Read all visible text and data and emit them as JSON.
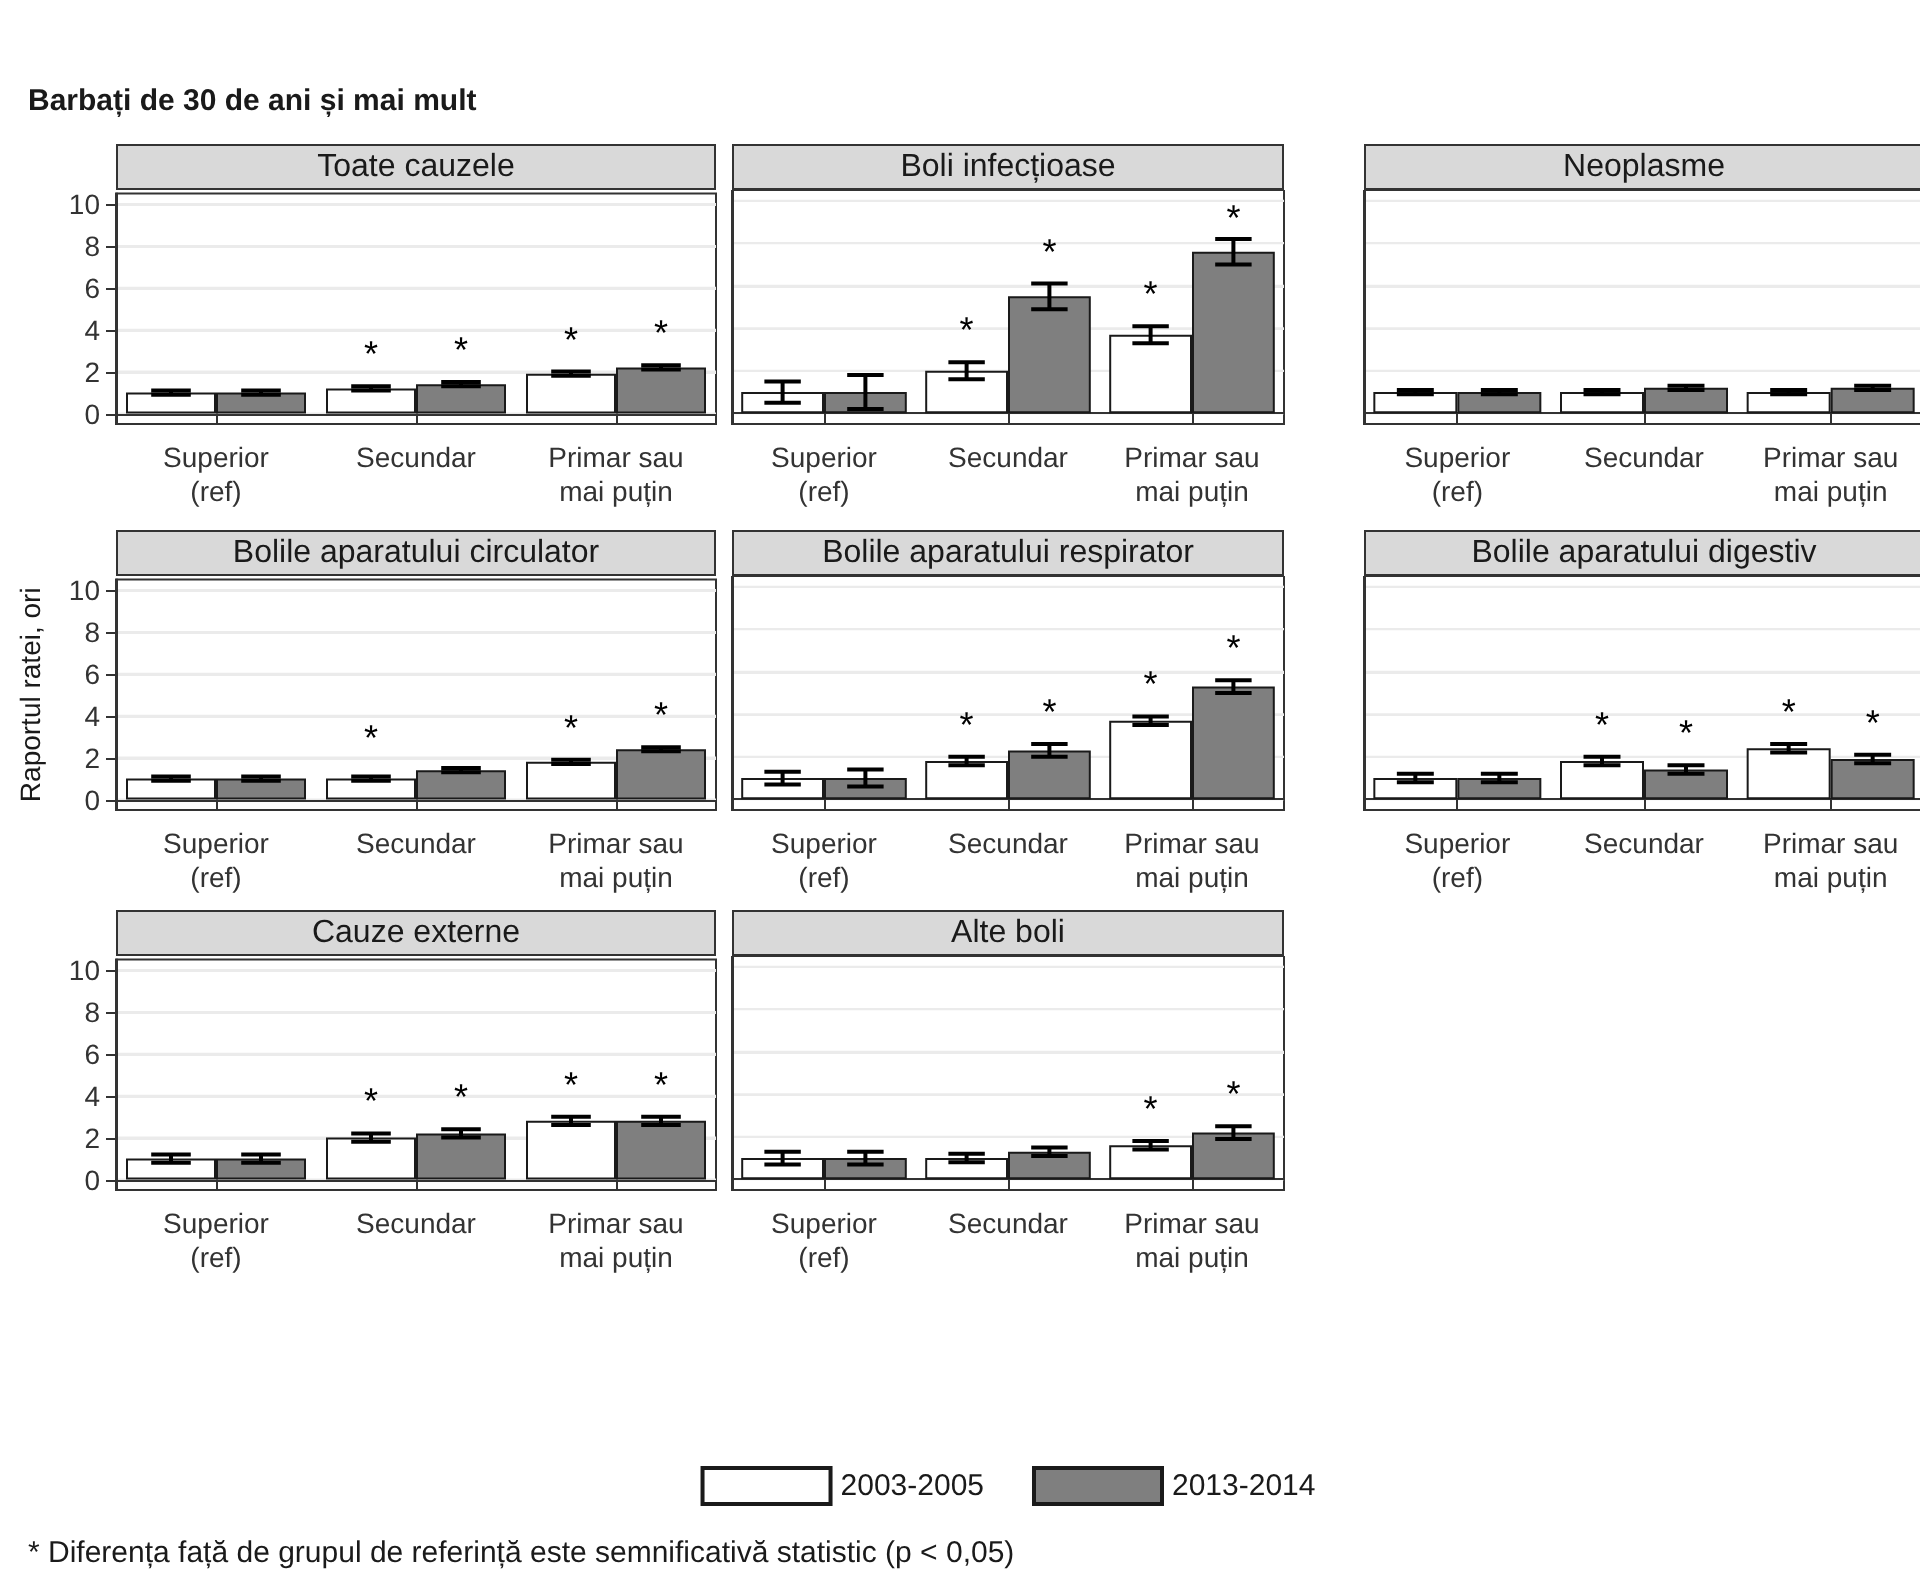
{
  "chart_data": [
    {
      "type": "bar",
      "title": "Toate cauzele",
      "annotations": [
        "Barbați de 30 de ani și mai mult",
        {
          "text": "*",
          "x": "Secundar",
          "y": 1.2
        },
        {
          "text": "*",
          "x": "Secundar",
          "y": 1.4
        },
        {
          "text": "*",
          "x": "Primar sau\nmai puțin",
          "y": 1.9
        },
        {
          "text": "*",
          "x": "Primar sau\nmai puțin",
          "y": 2.2
        }
      ],
      "categories": [
        "Superior\n(ref)",
        "Secundar",
        "Primar sau\nmai puțin"
      ],
      "series": [
        {
          "color": "#ffffff",
          "values": [
            1,
            1.2,
            1.9
          ],
          "errors": [
            0.1,
            0.1,
            0.1
          ]
        },
        {
          "color": "#7f7f7f",
          "values": [
            1,
            1.4,
            2.2
          ],
          "errors": [
            0.1,
            0.1,
            0.1
          ]
        }
      ],
      "ylim": [
        -0.5,
        10.5
      ],
      "yticks": [
        0,
        2,
        4,
        6,
        8,
        10
      ],
      "grid": "y"
    },
    {
      "type": "bar",
      "title": "Boli infecțioase",
      "annotations": [
        {
          "text": "*",
          "x": "Secundar",
          "y": 2
        },
        {
          "text": "*",
          "x": "Secundar",
          "y": 5.5
        },
        {
          "text": "*",
          "x": "Primar sau\nmai puțin",
          "y": 3.7
        },
        {
          "text": "*",
          "x": "Primar sau\nmai puțin",
          "y": 7.6
        }
      ],
      "categories": [
        "Superior\n(ref)",
        "Secundar",
        "Primar sau\nmai puțin"
      ],
      "series": [
        {
          "color": "#ffffff",
          "values": [
            1,
            2,
            3.7
          ],
          "errors": [
            0.5,
            0.4,
            0.4
          ]
        },
        {
          "color": "#7f7f7f",
          "values": [
            1,
            5.5,
            7.6
          ],
          "errors": [
            0.8,
            0.6,
            0.6
          ]
        }
      ],
      "ylim": [
        -0.5,
        10.5
      ],
      "yticks": [
        0,
        2,
        4,
        6,
        8,
        10
      ],
      "grid": "y",
      "tick_labels": "x"
    },
    {
      "type": "bar",
      "title": "Neoplasme",
      "categories": [
        "Superior\n(ref)",
        "Secundar",
        "Primar sau\nmai puțin"
      ],
      "series": [
        {
          "color": "#ffffff",
          "values": [
            1,
            1,
            1
          ],
          "errors": [
            0.1,
            0.1,
            0.1
          ]
        },
        {
          "color": "#7f7f7f",
          "values": [
            1,
            1.2,
            1.2
          ],
          "errors": [
            0.1,
            0.1,
            0.1
          ]
        }
      ],
      "ylim": [
        -0.5,
        10.5
      ],
      "yticks": [
        0,
        2,
        4,
        6,
        8,
        10
      ],
      "grid": "y",
      "tick_labels": "x"
    },
    {
      "type": "bar",
      "title": "Bolile aparatului circulator",
      "ylabel": "Raportul ratei, ori",
      "annotations": [
        {
          "text": "*",
          "x": "Secundar",
          "y": 1.4
        },
        {
          "text": "*",
          "x": "Primar sau\nmai puțin",
          "y": 1.8
        },
        {
          "text": "*",
          "x": "Primar sau\nmai puțin",
          "y": 2.4
        }
      ],
      "categories": [
        "Superior\n(ref)",
        "Secundar",
        "Primar sau\nmai puțin"
      ],
      "series": [
        {
          "color": "#ffffff",
          "values": [
            1,
            1,
            1.8
          ],
          "errors": [
            0.1,
            0.1,
            0.1
          ]
        },
        {
          "color": "#7f7f7f",
          "values": [
            1,
            1.4,
            2.4
          ],
          "errors": [
            0.1,
            0.1,
            0.1
          ]
        }
      ],
      "ylim": [
        -0.5,
        10.5
      ],
      "yticks": [
        0,
        2,
        4,
        6,
        8,
        10
      ],
      "grid": "y"
    },
    {
      "type": "bar",
      "title": "Bolile aparatului respirator",
      "annotations": [
        {
          "text": "*",
          "x": "Secundar",
          "y": 1.8
        },
        {
          "text": "*",
          "x": "Secundar",
          "y": 2.3
        },
        {
          "text": "*",
          "x": "Primar sau\nmai puțin",
          "y": 3.7
        },
        {
          "text": "*",
          "x": "Primar sau\nmai puțin",
          "y": 5.3
        }
      ],
      "categories": [
        "Superior\n(ref)",
        "Secundar",
        "Primar sau\nmai puțin"
      ],
      "series": [
        {
          "color": "#ffffff",
          "values": [
            1,
            1.8,
            3.7
          ],
          "errors": [
            0.3,
            0.2,
            0.2
          ]
        },
        {
          "color": "#7f7f7f",
          "values": [
            1,
            2.3,
            5.3
          ],
          "errors": [
            0.4,
            0.3,
            0.3
          ]
        }
      ],
      "ylim": [
        -0.5,
        10.5
      ],
      "yticks": [
        0,
        2,
        4,
        6,
        8,
        10
      ],
      "grid": "y",
      "tick_labels": "x"
    },
    {
      "type": "bar",
      "title": "Bolile aparatului digestiv",
      "annotations": [
        {
          "text": "*",
          "x": "Secundar",
          "y": 1.8
        },
        {
          "text": "*",
          "x": "Secundar",
          "y": 1.4
        },
        {
          "text": "*",
          "x": "Primar sau\nmai puțin",
          "y": 2.4
        },
        {
          "text": "*",
          "x": "Primar sau\nmai puțin",
          "y": 1.9
        }
      ],
      "categories": [
        "Superior\n(ref)",
        "Secundar",
        "Primar sau\nmai puțin"
      ],
      "series": [
        {
          "color": "#ffffff",
          "values": [
            1,
            1.8,
            2.4
          ],
          "errors": [
            0.2,
            0.2,
            0.2
          ]
        },
        {
          "color": "#7f7f7f",
          "values": [
            1,
            1.4,
            1.9
          ],
          "errors": [
            0.2,
            0.2,
            0.2
          ]
        }
      ],
      "ylim": [
        -0.5,
        10.5
      ],
      "yticks": [
        0,
        2,
        4,
        6,
        8,
        10
      ],
      "grid": "y",
      "tick_labels": "x"
    },
    {
      "type": "bar",
      "title": "Cauze externe",
      "annotations": [
        {
          "text": "*",
          "x": "Secundar",
          "y": 2
        },
        {
          "text": "*",
          "x": "Secundar",
          "y": 2.2
        },
        {
          "text": "*",
          "x": "Primar sau\nmai puțin",
          "y": 2.8
        },
        {
          "text": "*",
          "x": "Primar sau\nmai puțin",
          "y": 2.8
        }
      ],
      "categories": [
        "Superior\n(ref)",
        "Secundar",
        "Primar sau\nmai puțin"
      ],
      "series": [
        {
          "color": "#ffffff",
          "values": [
            1,
            2,
            2.8
          ],
          "errors": [
            0.2,
            0.2,
            0.2
          ]
        },
        {
          "color": "#7f7f7f",
          "values": [
            1,
            2.2,
            2.8
          ],
          "errors": [
            0.2,
            0.2,
            0.2
          ]
        }
      ],
      "ylim": [
        -0.5,
        10.5
      ],
      "yticks": [
        0,
        2,
        4,
        6,
        8,
        10
      ],
      "grid": "y"
    },
    {
      "type": "bar",
      "title": "Alte boli",
      "annotations": [
        {
          "text": "*",
          "x": "Primar sau\nmai puțin",
          "y": 1.6
        },
        {
          "text": "*",
          "x": "Primar sau\nmai puțin",
          "y": 2.2
        },
        "* Diferența față de grupul de referință este semnificativă statistic (p < 0,05)"
      ],
      "categories": [
        "Superior\n(ref)",
        "Secundar",
        "Primar sau\nmai puțin"
      ],
      "series": [
        {
          "name": "2003-2005",
          "color": "#ffffff",
          "values": [
            1,
            1,
            1.6
          ],
          "errors": [
            0.3,
            0.2,
            0.2
          ]
        },
        {
          "name": "2013-2014",
          "color": "#7f7f7f",
          "values": [
            1,
            1.3,
            2.2
          ],
          "errors": [
            0.3,
            0.2,
            0.3
          ]
        }
      ],
      "ylim": [
        -0.5,
        10.5
      ],
      "yticks": [
        0,
        2,
        4,
        6,
        8,
        10
      ],
      "grid": "y",
      "tick_labels": "x",
      "legend": "bottom"
    }
  ]
}
